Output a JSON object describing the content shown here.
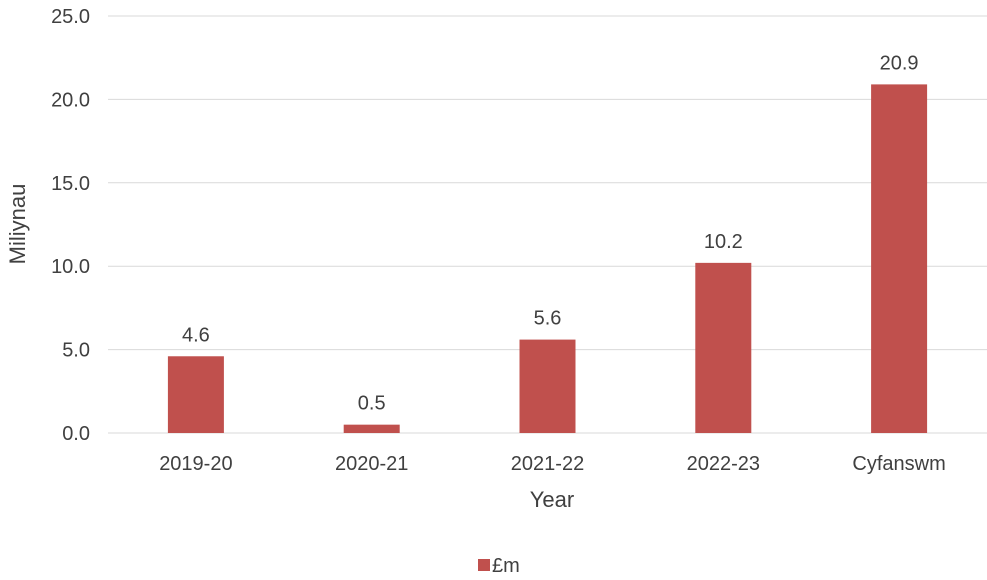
{
  "chart_data": {
    "type": "bar",
    "categories": [
      "2019-20",
      "2020-21",
      "2021-22",
      "2022-23",
      "Cyfanswm"
    ],
    "series": [
      {
        "name": "£m",
        "values": [
          4.6,
          0.5,
          5.6,
          10.2,
          20.9
        ],
        "labels": [
          "4.6",
          "0.5",
          "5.6",
          "10.2",
          "20.9"
        ],
        "color": "#c0504d"
      }
    ],
    "title": "",
    "xlabel": "Year",
    "ylabel": "Miliynau",
    "ylim": [
      0,
      25
    ],
    "yticks": [
      "0.0",
      "5.0",
      "10.0",
      "15.0",
      "20.0",
      "25.0"
    ],
    "ytick_values": [
      0,
      5,
      10,
      15,
      20,
      25
    ],
    "grid": true,
    "legend_position": "bottom-center"
  }
}
